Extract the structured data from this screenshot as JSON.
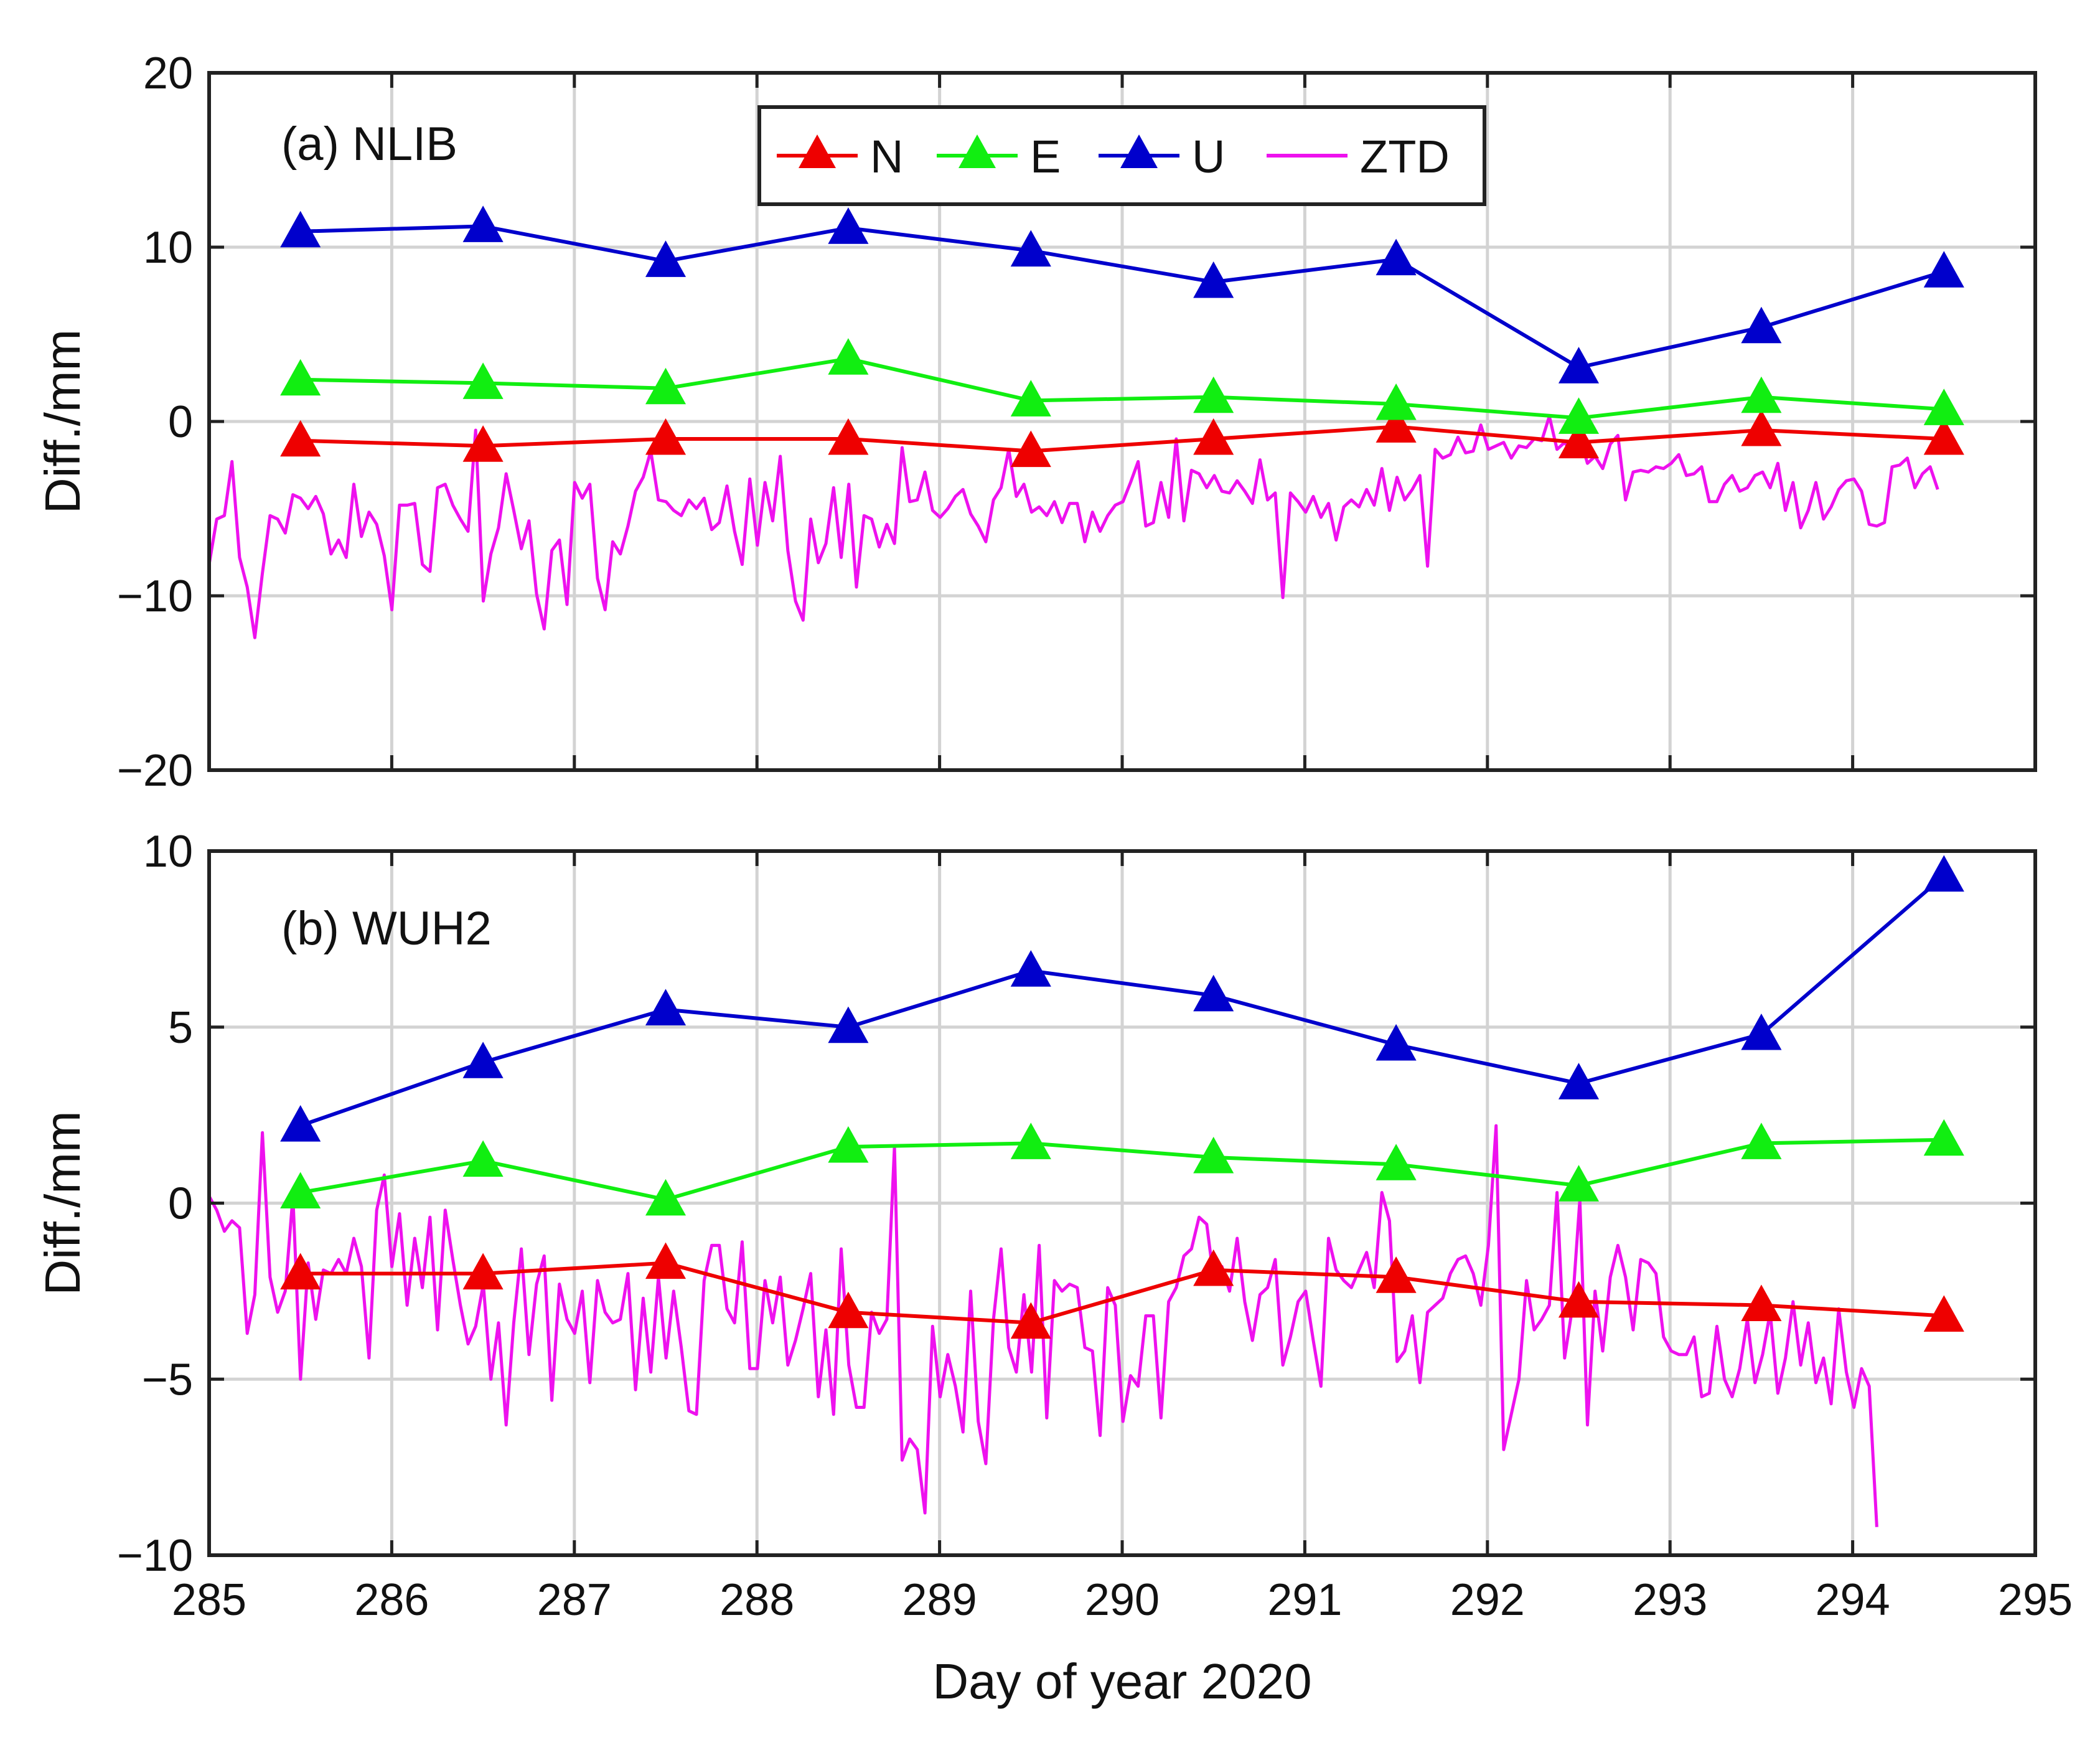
{
  "chart_data": {
    "type": "line",
    "xlabel": "Day of year 2020",
    "xlim": [
      285,
      295
    ],
    "xticks": [
      285,
      286,
      287,
      288,
      289,
      290,
      291,
      292,
      293,
      294,
      295
    ],
    "legend": {
      "placement": "top-center",
      "entries": [
        "N",
        "E",
        "U",
        "ZTD"
      ]
    },
    "series_styles": {
      "N": {
        "color": "#ee0000",
        "marker": "triangle"
      },
      "E": {
        "color": "#11ee11",
        "marker": "triangle"
      },
      "U": {
        "color": "#0000cc",
        "marker": "triangle"
      },
      "ZTD": {
        "color": "#ee11ee",
        "marker": "none"
      }
    },
    "panels": [
      {
        "label": "(a) NLIB",
        "ylabel": "Diff./mm",
        "ylim": [
          -20,
          20
        ],
        "yticks": [
          -20,
          -10,
          0,
          10,
          20
        ],
        "ytick_labels": [
          "−20",
          "−10",
          "0",
          "10",
          "20"
        ],
        "x": [
          285.5,
          286.5,
          287.5,
          288.5,
          289.5,
          290.5,
          291.5,
          292.5,
          293.5,
          294.5
        ],
        "series": [
          {
            "name": "N",
            "values": [
              -1.1,
              -1.4,
              -1.0,
              -1.0,
              -1.7,
              -1.0,
              -0.3,
              -1.2,
              -0.5,
              -1.0
            ]
          },
          {
            "name": "E",
            "values": [
              2.4,
              2.2,
              1.9,
              3.6,
              1.2,
              1.4,
              1.0,
              0.2,
              1.4,
              0.7
            ]
          },
          {
            "name": "U",
            "values": [
              10.9,
              11.2,
              9.2,
              11.1,
              9.8,
              8.0,
              9.3,
              3.1,
              5.4,
              8.6
            ]
          },
          {
            "name": "ZTD",
            "x_start": 285.0,
            "x_step": 0.0417,
            "values": [
              -8.2,
              -5.6,
              -5.4,
              -2.3,
              -7.8,
              -9.5,
              -12.4,
              -8.7,
              -5.4,
              -5.6,
              -6.4,
              -4.2,
              -4.4,
              -5.0,
              -4.3,
              -5.3,
              -7.6,
              -6.8,
              -7.8,
              -3.6,
              -6.6,
              -5.2,
              -5.9,
              -7.7,
              -10.8,
              -4.8,
              -4.8,
              -4.7,
              -8.2,
              -8.6,
              -3.8,
              -3.6,
              -4.8,
              -5.6,
              -6.3,
              -0.5,
              -10.3,
              -7.6,
              -6.1,
              -3.0,
              -5.1,
              -7.3,
              -5.7,
              -9.9,
              -11.9,
              -7.4,
              -6.8,
              -10.5,
              -3.5,
              -4.4,
              -3.6,
              -9.0,
              -10.8,
              -6.9,
              -7.6,
              -6.0,
              -4.0,
              -3.2,
              -1.7,
              -4.5,
              -4.6,
              -5.1,
              -5.4,
              -4.5,
              -5.0,
              -4.4,
              -6.2,
              -5.8,
              -3.7,
              -6.3,
              -8.2,
              -3.3,
              -7.1,
              -3.5,
              -5.7,
              -2.0,
              -7.4,
              -10.3,
              -11.4,
              -5.6,
              -8.1,
              -7.0,
              -3.8,
              -7.8,
              -3.6,
              -9.5,
              -5.4,
              -5.6,
              -7.2,
              -5.9,
              -7.0,
              -1.5,
              -4.6,
              -4.5,
              -2.9,
              -5.1,
              -5.5,
              -5.0,
              -4.3,
              -3.9,
              -5.3,
              -6.0,
              -6.9,
              -4.5,
              -3.8,
              -1.6,
              -4.3,
              -3.6,
              -5.2,
              -4.9,
              -5.4,
              -4.6,
              -5.8,
              -4.7,
              -4.7,
              -6.9,
              -5.2,
              -6.3,
              -5.4,
              -4.8,
              -4.6,
              -3.5,
              -2.3,
              -6.0,
              -5.8,
              -3.5,
              -5.5,
              -1.0,
              -5.7,
              -2.8,
              -3.0,
              -3.8,
              -3.1,
              -4.0,
              -4.1,
              -3.4,
              -4.0,
              -4.7,
              -2.2,
              -4.5,
              -4.1,
              -10.1,
              -4.1,
              -4.6,
              -5.2,
              -4.3,
              -5.5,
              -4.7,
              -6.8,
              -4.9,
              -4.5,
              -4.9,
              -3.9,
              -4.8,
              -2.7,
              -5.1,
              -3.2,
              -4.5,
              -3.9,
              -3.1,
              -8.3,
              -1.6,
              -2.1,
              -1.9,
              -0.9,
              -1.8,
              -1.7,
              -0.2,
              -1.6,
              -1.4,
              -1.2,
              -2.1,
              -1.4,
              -1.5,
              -1.0,
              -1.1,
              0.3,
              -1.6,
              -1.2,
              -1.8,
              -0.9,
              -2.4,
              -2.0,
              -2.7,
              -1.3,
              -0.8,
              -4.5,
              -2.9,
              -2.8,
              -2.9,
              -2.6,
              -2.7,
              -2.4,
              -1.9,
              -3.1,
              -3.0,
              -2.6,
              -4.6,
              -4.6,
              -3.6,
              -3.1,
              -4.0,
              -3.8,
              -3.1,
              -2.9,
              -3.8,
              -2.4,
              -5.1,
              -3.5,
              -6.1,
              -5.1,
              -3.5,
              -5.6,
              -4.9,
              -3.9,
              -3.4,
              -3.3,
              -4.0,
              -5.9,
              -6.0,
              -5.8,
              -2.6,
              -2.5,
              -2.1,
              -3.8,
              -3.0,
              -2.6,
              -3.9
            ]
          }
        ]
      },
      {
        "label": "(b) WUH2",
        "ylabel": "Diff./mm",
        "ylim": [
          -10,
          10
        ],
        "yticks": [
          -10,
          -5,
          0,
          5,
          10
        ],
        "ytick_labels": [
          "−10",
          "−5",
          "0",
          "5",
          "10"
        ],
        "x": [
          285.5,
          286.5,
          287.5,
          288.5,
          289.5,
          290.5,
          291.5,
          292.5,
          293.5,
          294.5
        ],
        "series": [
          {
            "name": "N",
            "values": [
              -2.0,
              -2.0,
              -1.7,
              -3.1,
              -3.4,
              -1.9,
              -2.1,
              -2.8,
              -2.9,
              -3.2
            ]
          },
          {
            "name": "E",
            "values": [
              0.3,
              1.2,
              0.1,
              1.6,
              1.7,
              1.3,
              1.1,
              0.5,
              1.7,
              1.8
            ]
          },
          {
            "name": "U",
            "values": [
              2.2,
              4.0,
              5.5,
              5.0,
              6.6,
              5.9,
              4.5,
              3.4,
              4.8,
              9.3
            ]
          },
          {
            "name": "ZTD",
            "x_start": 285.0,
            "x_step": 0.0417,
            "values": [
              0.2,
              -0.2,
              -0.8,
              -0.5,
              -0.7,
              -3.7,
              -2.6,
              2.0,
              -2.1,
              -3.1,
              -2.5,
              0.2,
              -5.0,
              -1.7,
              -3.3,
              -1.9,
              -2.0,
              -1.6,
              -2.0,
              -1.0,
              -1.8,
              -4.4,
              -0.2,
              0.8,
              -1.8,
              -0.3,
              -2.9,
              -1.0,
              -2.4,
              -0.4,
              -3.6,
              -0.2,
              -1.6,
              -2.9,
              -4.0,
              -3.5,
              -2.3,
              -5.0,
              -3.4,
              -6.3,
              -3.4,
              -1.3,
              -4.3,
              -2.3,
              -1.5,
              -5.6,
              -2.3,
              -3.3,
              -3.7,
              -2.5,
              -5.1,
              -2.2,
              -3.1,
              -3.4,
              -3.3,
              -2.0,
              -5.3,
              -2.7,
              -4.8,
              -2.1,
              -4.4,
              -2.5,
              -4.1,
              -5.9,
              -6.0,
              -2.2,
              -1.2,
              -1.2,
              -3.0,
              -3.4,
              -1.1,
              -4.7,
              -4.7,
              -2.2,
              -3.4,
              -2.1,
              -4.6,
              -3.9,
              -3.0,
              -2.0,
              -5.5,
              -3.6,
              -6.0,
              -1.3,
              -4.6,
              -5.8,
              -5.8,
              -3.1,
              -3.7,
              -3.3,
              1.6,
              -7.3,
              -6.7,
              -7.0,
              -8.8,
              -3.5,
              -5.5,
              -4.3,
              -5.2,
              -6.5,
              -2.5,
              -6.2,
              -7.4,
              -3.3,
              -1.3,
              -4.1,
              -4.8,
              -2.6,
              -4.8,
              -1.2,
              -6.1,
              -2.2,
              -2.5,
              -2.3,
              -2.4,
              -4.1,
              -4.2,
              -6.6,
              -2.4,
              -2.9,
              -6.2,
              -4.9,
              -5.2,
              -3.2,
              -3.2,
              -6.1,
              -2.8,
              -2.4,
              -1.5,
              -1.3,
              -0.4,
              -0.6,
              -2.3,
              -1.8,
              -2.5,
              -1.0,
              -2.8,
              -3.9,
              -2.6,
              -2.4,
              -1.6,
              -4.6,
              -3.8,
              -2.8,
              -2.5,
              -3.9,
              -5.2,
              -1.0,
              -1.9,
              -2.2,
              -2.4,
              -1.9,
              -1.4,
              -2.4,
              0.3,
              -0.5,
              -4.5,
              -4.2,
              -3.2,
              -5.1,
              -3.1,
              -2.9,
              -2.7,
              -2.0,
              -1.6,
              -1.5,
              -2.0,
              -2.9,
              -1.2,
              2.2,
              -7.0,
              -6.0,
              -5.0,
              -2.2,
              -3.6,
              -3.3,
              -2.9,
              0.3,
              -4.4,
              -3.0,
              0.1,
              -6.3,
              -2.5,
              -4.2,
              -2.1,
              -1.2,
              -2.1,
              -3.6,
              -1.6,
              -1.7,
              -2.0,
              -3.8,
              -4.2,
              -4.3,
              -4.3,
              -3.8,
              -5.5,
              -5.4,
              -3.5,
              -5.0,
              -5.5,
              -4.7,
              -3.3,
              -5.1,
              -4.3,
              -3.1,
              -5.4,
              -4.4,
              -2.8,
              -4.6,
              -3.4,
              -5.1,
              -4.4,
              -5.7,
              -3.0,
              -4.8,
              -5.8,
              -4.7,
              -5.2,
              -9.2
            ]
          }
        ]
      }
    ]
  }
}
